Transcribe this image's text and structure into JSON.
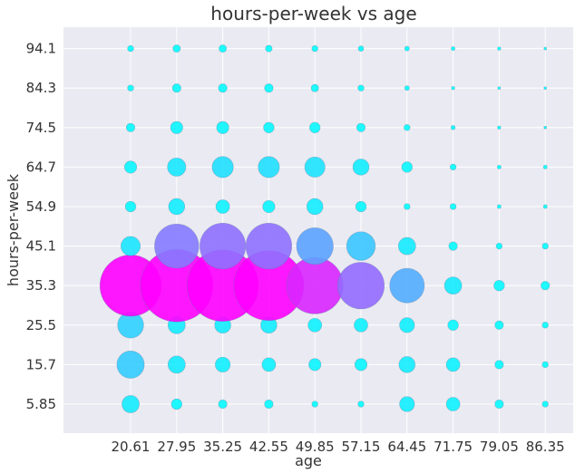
{
  "chart_data": {
    "type": "scatter",
    "title": "hours-per-week vs age",
    "xlabel": "age",
    "ylabel": "hours-per-week",
    "x": [
      "20.61",
      "27.95",
      "35.25",
      "42.55",
      "49.85",
      "57.15",
      "64.45",
      "71.75",
      "79.05",
      "86.35"
    ],
    "y": [
      "5.85",
      "15.7",
      "25.5",
      "35.3",
      "45.1",
      "54.9",
      "64.7",
      "74.5",
      "84.3",
      "94.1"
    ],
    "size_unit": "relative count (0-100)",
    "color_scale": "cool",
    "grid": true,
    "background": "#eaeaf2",
    "grid_color": "#ffffff",
    "sizes": [
      [
        8,
        3,
        2,
        2,
        1,
        1,
        6,
        5,
        2,
        1
      ],
      [
        20,
        8,
        6,
        5,
        4,
        4,
        7,
        5,
        2,
        1
      ],
      [
        18,
        8,
        7,
        7,
        5,
        5,
        6,
        3,
        2,
        1
      ],
      [
        100,
        140,
        136,
        130,
        85,
        58,
        32,
        8,
        3,
        2
      ],
      [
        10,
        52,
        56,
        56,
        36,
        22,
        8,
        2,
        1,
        1
      ],
      [
        3,
        7,
        5,
        4,
        7,
        3,
        1,
        1,
        0.4,
        0.4
      ],
      [
        4,
        9,
        12,
        12,
        11,
        7,
        3,
        1,
        0.4,
        0.4
      ],
      [
        2,
        4,
        4,
        3,
        3,
        2,
        1,
        0.5,
        0.3,
        0.2
      ],
      [
        1,
        2,
        2,
        2,
        1.5,
        1,
        0.6,
        0.3,
        0.2,
        0.2
      ],
      [
        1,
        1.5,
        1.5,
        1.2,
        1,
        0.8,
        0.6,
        0.4,
        0.3,
        0.2
      ]
    ]
  }
}
